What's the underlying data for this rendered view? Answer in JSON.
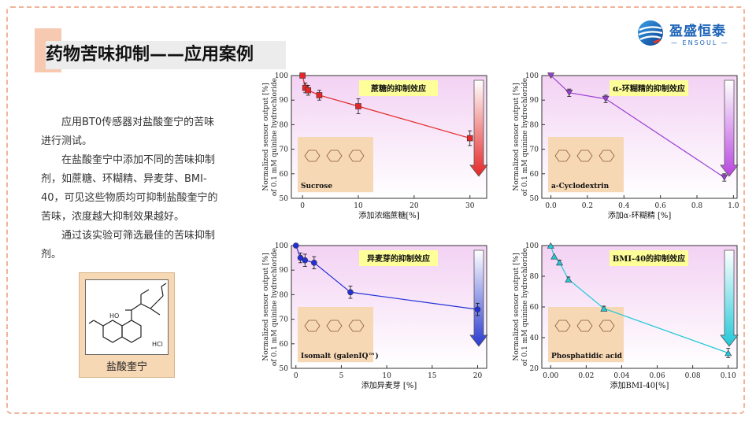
{
  "slide": {
    "title": "药物苦味抑制——应用案例",
    "logo_cn": "盈盛恒泰",
    "logo_en": "— ENSOUL —",
    "paragraphs": [
      "应用BT0传感器对盐酸奎宁的苦味进行测试。",
      "在盐酸奎宁中添加不同的苦味抑制剂，如蔗糖、环糊精、异麦芽、BMI-40，可见这些物质均可抑制盐酸奎宁的苦味，浓度越大抑制效果越好。",
      "通过该实验可筛选最佳的苦味抑制剂。"
    ],
    "structure_label": "盐酸奎宁",
    "structure_hcl": "HCl",
    "structure_ho": "HO"
  },
  "colors": {
    "accent": "#f6c9b0",
    "frame": "#f0b49a",
    "logo": "#1c63b7",
    "banner": "#ffff99",
    "inset": "#f7d8b5"
  },
  "chart_data": [
    {
      "type": "line",
      "ylabel_line1": "Normalized sensor output [%]",
      "ylabel_line2": "of 0.1 mM quinine hydrochloride",
      "xlabel": "添加浓缩蔗糖[%]",
      "banner": "蔗糖的抑制效应",
      "compound": "Sucrose",
      "xlim": [
        -2,
        33
      ],
      "ylim": [
        50,
        100
      ],
      "xticks": [
        0,
        10,
        20,
        30
      ],
      "xtick_labels": [
        "0",
        "10",
        "20",
        "30"
      ],
      "yticks": [
        50,
        60,
        70,
        80,
        90,
        100
      ],
      "series": [
        {
          "color": "#e52727",
          "marker": "square",
          "x": [
            0,
            0.5,
            1,
            3,
            10,
            30
          ],
          "y": [
            100,
            95,
            94,
            92,
            87.5,
            74.5
          ],
          "err": [
            0,
            2,
            2,
            2,
            3,
            3
          ]
        }
      ],
      "arrow_color": "#e52727"
    },
    {
      "type": "line",
      "ylabel_line1": "Normalized sensor output [%]",
      "ylabel_line2": "of 0.1 mM quinine hydrochloride",
      "xlabel": "添加α-环糊精 [%]",
      "banner": "α-环糊精的抑制效应",
      "compound": "a-Cyclodextrin",
      "xlim": [
        -0.05,
        1.02
      ],
      "ylim": [
        50,
        100
      ],
      "xticks": [
        0,
        0.2,
        0.4,
        0.6,
        0.8,
        1.0
      ],
      "xtick_labels": [
        "0.0",
        "0.2",
        "0.4",
        "0.6",
        "0.8",
        "1.0"
      ],
      "yticks": [
        50,
        60,
        70,
        80,
        90,
        100
      ],
      "series": [
        {
          "color": "#9b3fd4",
          "marker": "triangle-down",
          "x": [
            0,
            0.1,
            0.3,
            0.95
          ],
          "y": [
            100,
            93,
            90.5,
            58.5
          ],
          "err": [
            0,
            1.5,
            1.5,
            1.5
          ]
        }
      ],
      "arrow_color": "#b845e0"
    },
    {
      "type": "line",
      "ylabel_line1": "Normalized sensor output [%]",
      "ylabel_line2": "of 0.1 mM quinine hydrochloride",
      "xlabel": "添加异麦芽 [%]",
      "banner": "异麦芽的抑制效应",
      "compound": "Isomalt (galenIQ™)",
      "xlim": [
        -0.5,
        21
      ],
      "ylim": [
        50,
        100
      ],
      "xticks": [
        0,
        5,
        10,
        15,
        20
      ],
      "xtick_labels": [
        "0",
        "5",
        "10",
        "15",
        "20"
      ],
      "yticks": [
        50,
        60,
        70,
        80,
        90,
        100
      ],
      "series": [
        {
          "color": "#2330d6",
          "marker": "circle",
          "x": [
            0,
            0.5,
            1,
            2,
            6,
            20
          ],
          "y": [
            100,
            95,
            94,
            93,
            81,
            74
          ],
          "err": [
            0,
            2,
            2.5,
            2.5,
            2.5,
            2.5
          ]
        }
      ],
      "arrow_color": "#2a3ad0"
    },
    {
      "type": "line",
      "ylabel_line1": "Normalized sensor output [%]",
      "ylabel_line2": "of 0.1 mM quinine hydrochloride",
      "xlabel": "添加BMI-40[%]",
      "banner": "BMI-40的抑制效应",
      "compound": "Phosphatidic acid",
      "xlim": [
        -0.005,
        0.105
      ],
      "ylim": [
        20,
        100
      ],
      "xticks": [
        0,
        0.02,
        0.04,
        0.06,
        0.08,
        0.1
      ],
      "xtick_labels": [
        "0.00",
        "0.02",
        "0.04",
        "0.06",
        "0.08",
        "0.10"
      ],
      "yticks": [
        20,
        40,
        60,
        80,
        100
      ],
      "series": [
        {
          "color": "#22c8d8",
          "marker": "triangle-up",
          "x": [
            0,
            0.002,
            0.005,
            0.01,
            0.03,
            0.1
          ],
          "y": [
            100,
            93,
            89,
            78,
            59,
            30
          ],
          "err": [
            0,
            0,
            1.5,
            1.5,
            1.5,
            3
          ]
        }
      ],
      "arrow_color": "#22c8d8"
    }
  ]
}
